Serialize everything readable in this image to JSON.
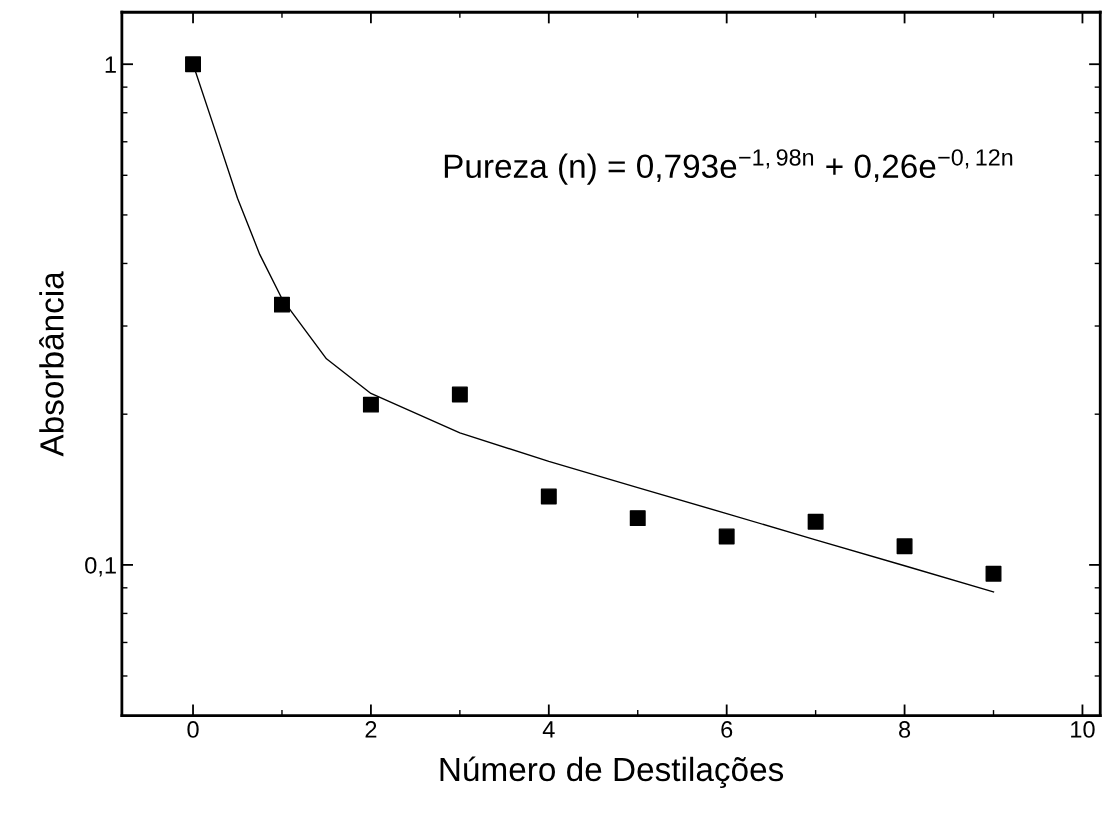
{
  "chart_data": {
    "type": "scatter",
    "xlabel": "Número de Destilações",
    "ylabel": "Absorbância",
    "log": "y",
    "xlim": [
      -0.8,
      10.2
    ],
    "xticks": [
      0,
      2,
      4,
      6,
      8,
      10
    ],
    "ylim": [
      0.05,
      1.27
    ],
    "yticks": [
      {
        "value": 0.1,
        "label": "0,1"
      },
      {
        "value": 1,
        "label": "1"
      }
    ],
    "grid": false,
    "legend": false,
    "annotations": [
      "Pureza (n) = 0,793e$^{−1,98n}$ + 0,26e$^{−0,12n}$"
    ],
    "series": [
      {
        "marker": "square",
        "color": "#000000",
        "x": [
          0,
          1,
          2,
          3,
          4,
          5,
          6,
          7,
          8,
          9
        ],
        "values": [
          1.0,
          0.331,
          0.209,
          0.219,
          0.137,
          0.124,
          0.114,
          0.122,
          0.109,
          0.096
        ]
      },
      {
        "type": "line",
        "marker": "none",
        "line_style": "solid",
        "color": "#000000",
        "x": [
          0,
          0.25,
          0.5,
          0.75,
          1,
          1.5,
          2,
          3,
          4,
          5,
          6,
          7,
          8,
          9
        ],
        "values": [
          1.0,
          0.736,
          0.54,
          0.417,
          0.34,
          0.258,
          0.22,
          0.1835,
          0.161,
          0.1427,
          0.1266,
          0.1122,
          0.0996,
          0.0883
        ]
      }
    ]
  }
}
